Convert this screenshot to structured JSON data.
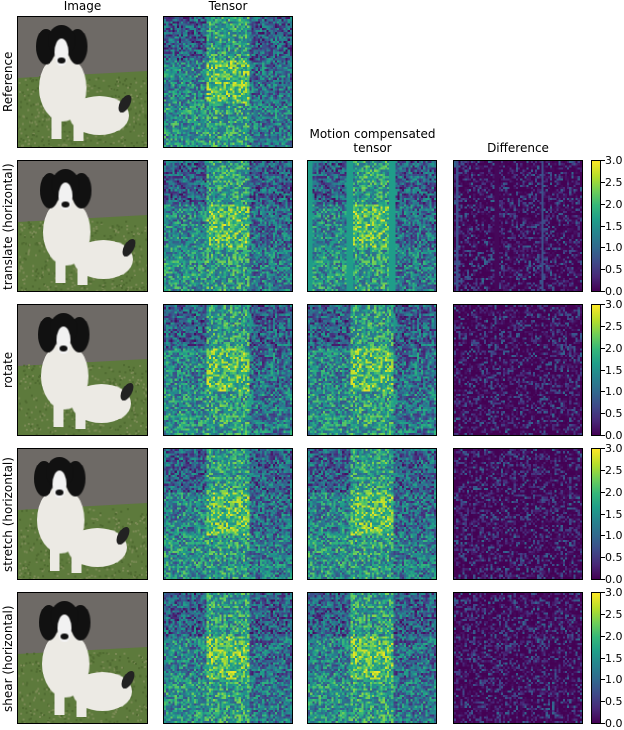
{
  "figure": {
    "columns": [
      "Image",
      "Tensor",
      "Motion compensated\ntensor",
      "Difference"
    ],
    "column_titles": {
      "image": "Image",
      "tensor": "Tensor",
      "mc_line1": "Motion compensated",
      "mc_line2": "tensor",
      "difference": "Difference"
    },
    "rows": [
      {
        "label": "Reference",
        "has_mc": false
      },
      {
        "label": "translate (horizontal)",
        "has_mc": true
      },
      {
        "label": "rotate",
        "has_mc": true
      },
      {
        "label": "stretch (horizontal)",
        "has_mc": true
      },
      {
        "label": "shear (horizontal)",
        "has_mc": true
      }
    ],
    "colorbar": {
      "ticks": [
        "0.0",
        "0.5",
        "1.0",
        "1.5",
        "2.0",
        "2.5",
        "3.0"
      ],
      "min": 0.0,
      "max": 3.0,
      "colormap": "viridis"
    }
  },
  "chart_data": {
    "type": "heatmap",
    "title": "",
    "columns": [
      "Image",
      "Tensor",
      "Motion compensated tensor",
      "Difference"
    ],
    "rows": [
      "Reference",
      "translate (horizontal)",
      "rotate",
      "stretch (horizontal)",
      "shear (horizontal)"
    ],
    "colorbar": {
      "colormap": "viridis",
      "range": [
        0.0,
        3.0
      ],
      "ticks": [
        0.0,
        0.5,
        1.0,
        1.5,
        2.0,
        2.5,
        3.0
      ]
    },
    "notes": "Tensor panels show 3x3 grid of feature-channel blocks; difference maps mostly near 0 (dark purple) with sparse values up to ~1.0"
  }
}
